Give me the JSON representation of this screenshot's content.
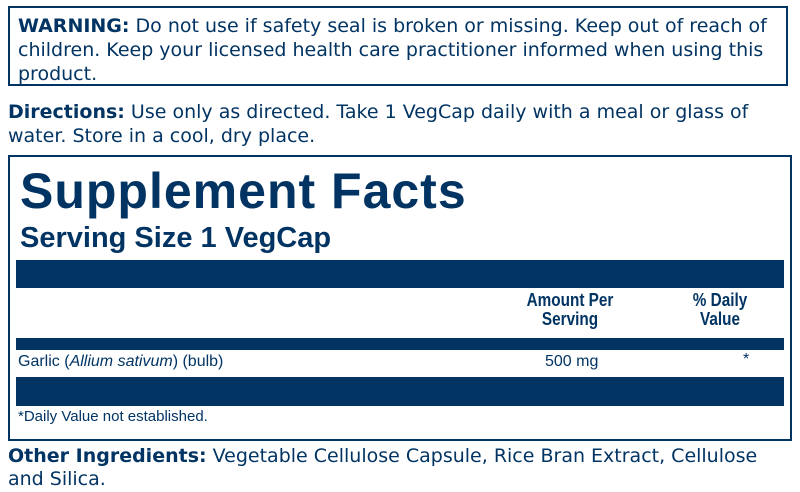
{
  "warning": {
    "label": "WARNING:",
    "text": " Do not use if safety seal is broken or missing. Keep out of reach of children. Keep your licensed health care practitioner informed when using this product."
  },
  "directions": {
    "label": "Directions:",
    "text": " Use only as directed. Take 1 VegCap daily with a meal or glass of water. Store in a cool, dry place."
  },
  "facts": {
    "title": "Supplement Facts",
    "serving_size": "Serving Size 1 VegCap",
    "col_amount": "Amount Per Serving",
    "col_dv": "% Daily Value",
    "rows": [
      {
        "name_pre": "Garlic (",
        "name_italic": "Allium sativum",
        "name_post": ") (bulb)",
        "amount": "500 mg",
        "dv": "*"
      }
    ],
    "footnote": "*Daily Value not established."
  },
  "other": {
    "label": "Other Ingredients:",
    "text": " Vegetable Cellulose Capsule, Rice Bran Extract, Cellulose and Silica."
  },
  "colors": {
    "brand": "#023463"
  }
}
